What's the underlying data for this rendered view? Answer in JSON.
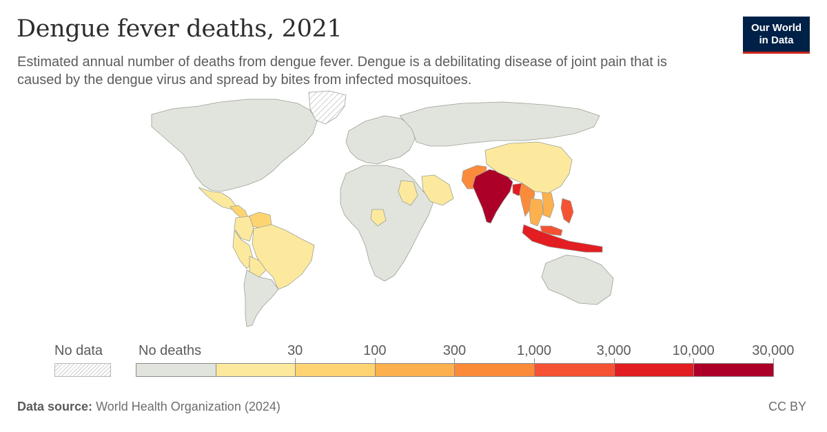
{
  "header": {
    "title": "Dengue fever deaths, 2021",
    "subtitle": "Estimated annual number of deaths from dengue fever. Dengue is a debilitating disease of joint pain that is caused by the dengue virus and spread by bites from infected mosquitoes."
  },
  "logo": {
    "line1": "Our World",
    "line2": "in Data",
    "bg": "#002147",
    "accent": "#ce261e"
  },
  "chart_data": {
    "type": "choropleth",
    "title": "Dengue fever deaths, 2021",
    "year": 2021,
    "legend": {
      "no_data_label": "No data",
      "placement": "bottom",
      "bins": [
        {
          "label": "No deaths",
          "min": 0,
          "max": 0,
          "color": "#e1e4dc"
        },
        {
          "label": "30",
          "min": 0,
          "max": 30,
          "color": "#fde99e"
        },
        {
          "label": "100",
          "min": 30,
          "max": 100,
          "color": "#fed473"
        },
        {
          "label": "300",
          "min": 100,
          "max": 300,
          "color": "#fdb04e"
        },
        {
          "label": "1,000",
          "min": 300,
          "max": 1000,
          "color": "#fb8a3b"
        },
        {
          "label": "3,000",
          "min": 1000,
          "max": 3000,
          "color": "#f45233"
        },
        {
          "label": "10,000",
          "min": 3000,
          "max": 10000,
          "color": "#e21e22"
        },
        {
          "label": "30,000",
          "min": 10000,
          "max": 30000,
          "color": "#ad0028"
        }
      ]
    },
    "regions": [
      {
        "name": "North America",
        "bin": 0
      },
      {
        "name": "Greenland",
        "bin": -1
      },
      {
        "name": "Mexico",
        "bin": 1
      },
      {
        "name": "Central America",
        "bin": 2
      },
      {
        "name": "Venezuela",
        "bin": 2
      },
      {
        "name": "Colombia",
        "bin": 1
      },
      {
        "name": "Brazil",
        "bin": 1
      },
      {
        "name": "Peru",
        "bin": 1
      },
      {
        "name": "Bolivia",
        "bin": 1
      },
      {
        "name": "Southern South America",
        "bin": 0
      },
      {
        "name": "Europe",
        "bin": 0
      },
      {
        "name": "Russia",
        "bin": 0
      },
      {
        "name": "Africa",
        "bin": 0
      },
      {
        "name": "Sudan",
        "bin": 1
      },
      {
        "name": "Nigeria",
        "bin": 1
      },
      {
        "name": "Saudi Arabia",
        "bin": 1
      },
      {
        "name": "Pakistan",
        "bin": 4
      },
      {
        "name": "India",
        "bin": 7
      },
      {
        "name": "Bangladesh",
        "bin": 6
      },
      {
        "name": "Myanmar",
        "bin": 4
      },
      {
        "name": "Thailand",
        "bin": 3
      },
      {
        "name": "Vietnam",
        "bin": 3
      },
      {
        "name": "China",
        "bin": 1
      },
      {
        "name": "Philippines",
        "bin": 5
      },
      {
        "name": "Indonesia",
        "bin": 6
      },
      {
        "name": "Malaysia",
        "bin": 5
      },
      {
        "name": "Australia",
        "bin": 0
      }
    ]
  },
  "footer": {
    "source_label": "Data source:",
    "source_text": "World Health Organization (2024)",
    "license": "CC BY"
  }
}
